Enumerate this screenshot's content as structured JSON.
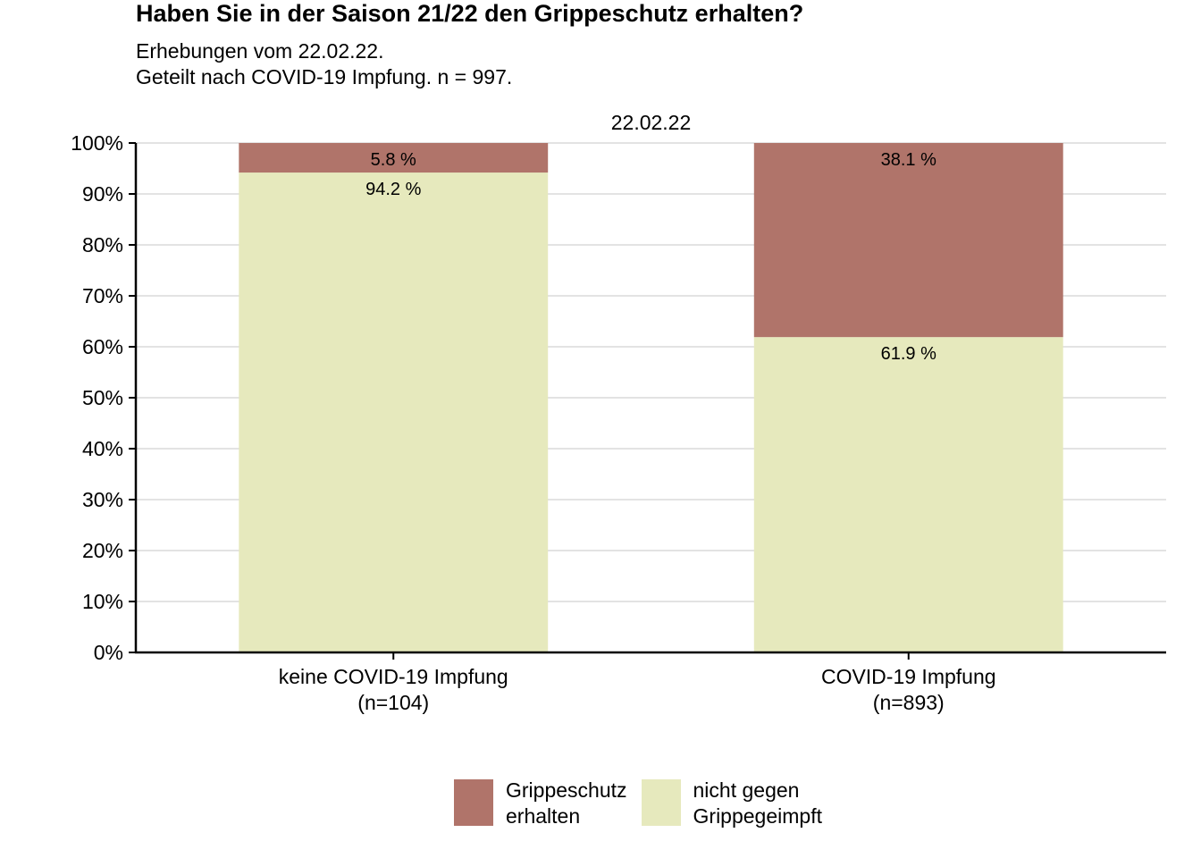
{
  "title": "Haben Sie in der Saison 21/22 den Grippeschutz erhalten?",
  "subtitle_lines": [
    "Erhebungen vom 22.02.22.",
    "Geteilt nach COVID-19 Impfung. n = 997."
  ],
  "chart_data": {
    "type": "bar",
    "stacked": true,
    "facet_label": "22.02.22",
    "categories": [
      [
        "keine COVID-19 Impfung",
        "(n=104)"
      ],
      [
        "COVID-19 Impfung",
        "(n=893)"
      ]
    ],
    "series": [
      {
        "name": "nicht gegen Grippegeimpft",
        "legend_lines": [
          "nicht gegen",
          "Grippegeimpft"
        ],
        "color": "#e6e9bd",
        "values": [
          94.2,
          61.9
        ],
        "labels": [
          "94.2 %",
          "61.9 %"
        ]
      },
      {
        "name": "Grippeschutz erhalten",
        "legend_lines": [
          "Grippeschutz",
          "erhalten"
        ],
        "color": "#b0746a",
        "values": [
          5.8,
          38.1
        ],
        "labels": [
          "5.8 %",
          "38.1 %"
        ]
      }
    ],
    "ylim": [
      0,
      100
    ],
    "yticks": [
      "0%",
      "10%",
      "20%",
      "30%",
      "40%",
      "50%",
      "60%",
      "70%",
      "80%",
      "90%",
      "100%"
    ],
    "grid": true,
    "legend_position": "bottom"
  }
}
